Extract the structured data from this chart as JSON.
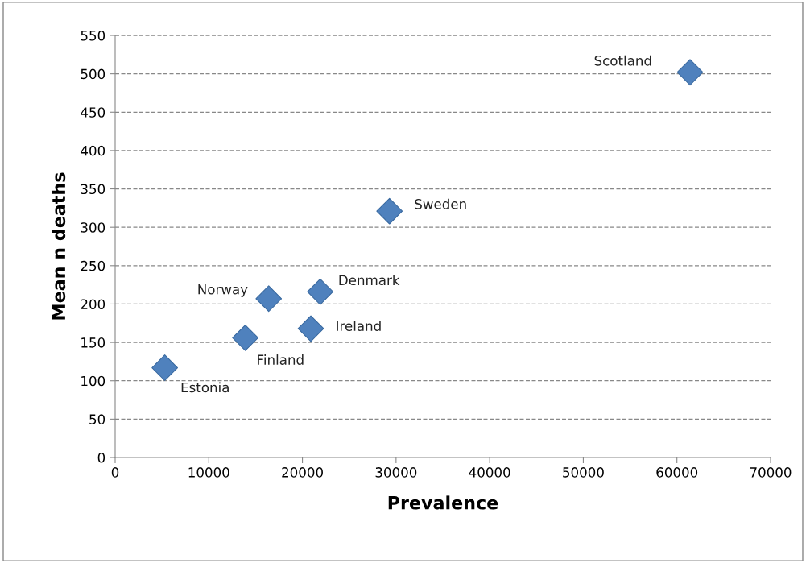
{
  "chart_data": {
    "type": "scatter",
    "xlabel": "Prevalence",
    "ylabel": "Mean n deaths",
    "x": [
      5300,
      13900,
      16400,
      20900,
      21900,
      29300,
      61400
    ],
    "series": [
      {
        "color": "#4f81bd",
        "values": [
          117,
          156,
          207,
          168,
          216,
          321,
          502
        ]
      }
    ],
    "xlim": [
      0,
      70000
    ],
    "xticks": [
      0,
      10000,
      20000,
      30000,
      40000,
      50000,
      60000,
      70000
    ],
    "ylim": [
      0,
      550
    ],
    "yticks": [
      0,
      50,
      100,
      150,
      200,
      250,
      300,
      350,
      400,
      450,
      500,
      550
    ],
    "grid": "y",
    "marker": "diamond",
    "legend": false,
    "annotations": [
      {
        "text": "Estonia",
        "x": 5300,
        "y": 117
      },
      {
        "text": "Finland",
        "x": 13900,
        "y": 156
      },
      {
        "text": "Norway",
        "x": 16400,
        "y": 207
      },
      {
        "text": "Ireland",
        "x": 20900,
        "y": 168
      },
      {
        "text": "Denmark",
        "x": 21900,
        "y": 216
      },
      {
        "text": "Sweden",
        "x": 29300,
        "y": 321
      },
      {
        "text": "Scotland",
        "x": 61400,
        "y": 502
      }
    ]
  }
}
